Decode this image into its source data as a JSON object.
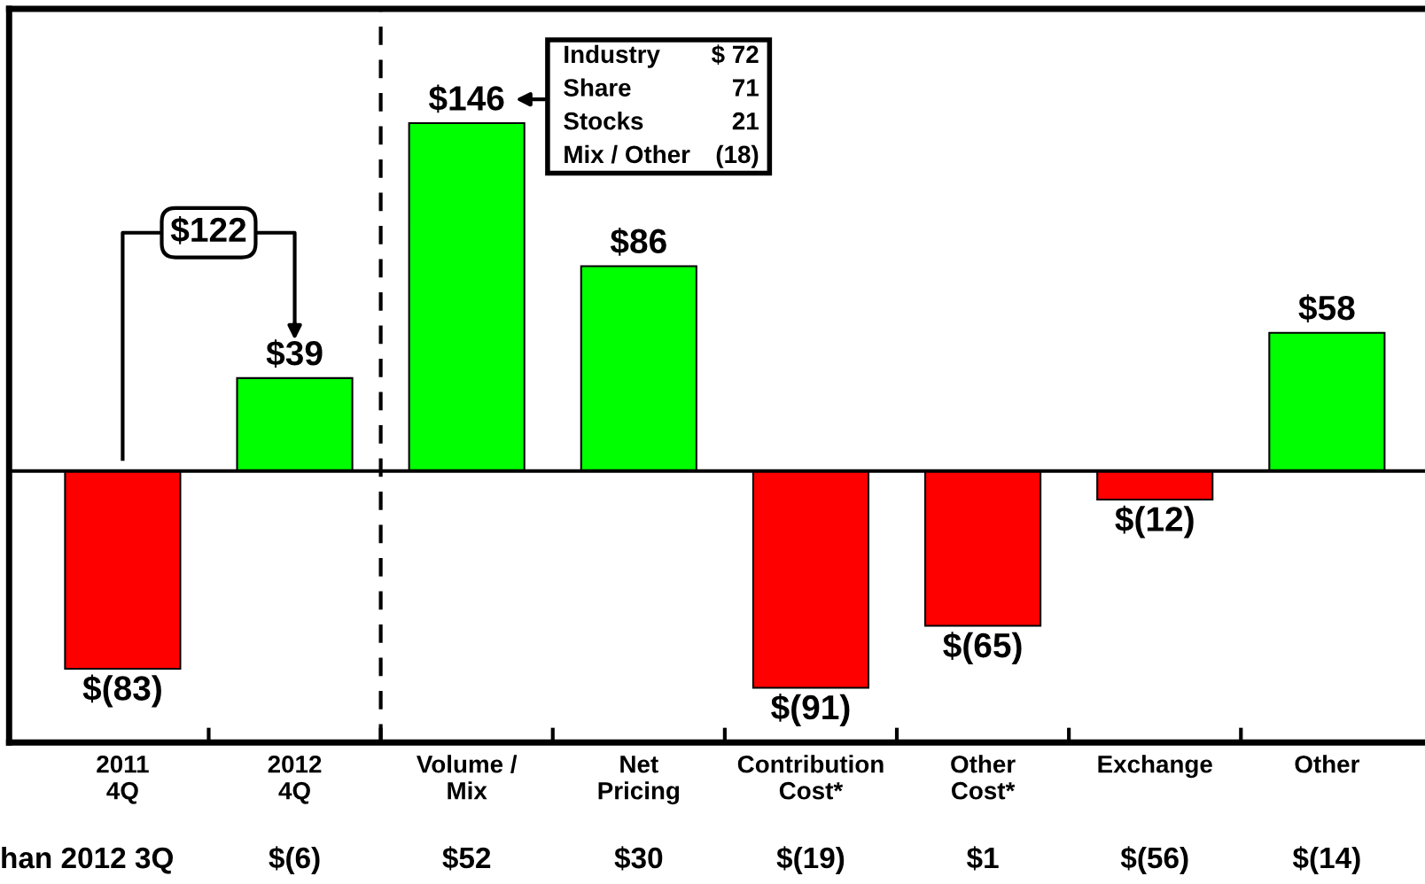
{
  "chart_data": {
    "type": "bar",
    "categories": [
      "2011\n4Q",
      "2012\n4Q",
      "Volume /\nMix",
      "Net\nPricing",
      "Contribution\nCost*",
      "Other\nCost*",
      "Exchange",
      "Other"
    ],
    "values": [
      -83,
      39,
      146,
      86,
      -91,
      -65,
      -12,
      58
    ],
    "colors": [
      "#ff0000",
      "#00ff00",
      "#00ff00",
      "#00ff00",
      "#ff0000",
      "#ff0000",
      "#ff0000",
      "#00ff00"
    ],
    "value_labels": [
      "$(83)",
      "$39",
      "$146",
      "$86",
      "$(91)",
      "$(65)",
      "$(12)",
      "$58"
    ],
    "ylim": [
      -114,
      194
    ],
    "tick_labels": "x",
    "grid": false,
    "ref_lines": [
      {
        "axis": "y",
        "value": 0,
        "color": "#000000",
        "line_style": "solid"
      }
    ],
    "annotations": [
      "han 2012 3Q",
      "$(6)",
      "$52",
      "$30",
      "$(19)",
      "$1",
      "$(56)",
      "$(14)",
      "$122",
      "Industry  $ 72\nShare  71\nStocks  21\nMix / Other  (18)"
    ]
  }
}
